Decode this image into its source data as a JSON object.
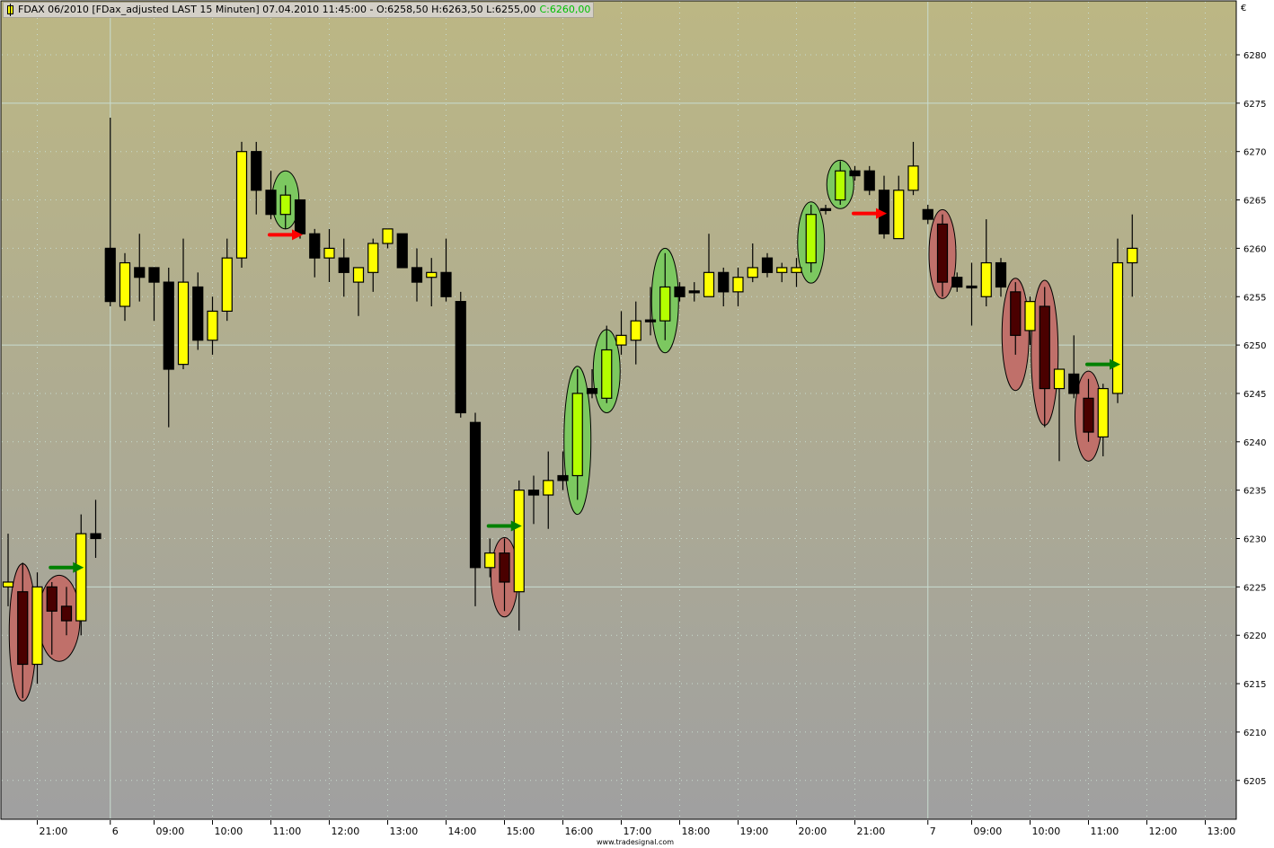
{
  "title": {
    "instrument": "FDAX 06/2010 [FDax_adjusted LAST 15 Minuten] 07.04.2010 11:45:00 - O:6258,50 H:6263,50 L:6255,00",
    "close": "C:6260,00",
    "icon": "candlestick-icon"
  },
  "currency": "€",
  "footer": "www.tradesignal.com",
  "colors": {
    "bg_top": "#bcb784",
    "bg_bottom": "#a0a0a0",
    "up": "#ffff00",
    "down": "#000000",
    "up_in_red": "#ffb000",
    "down_in_red": "#4a0000",
    "up_in_green": "#b4ff00",
    "down_in_green": "#003a00",
    "red_ellipse": "#c0706a",
    "green_ellipse": "#7cc860",
    "red_arrow": "#ff0000",
    "green_arrow": "#008000",
    "grid": "#c8dcd0",
    "close_text": "#00c000"
  },
  "chart_data": {
    "type": "candlestick",
    "ylim": [
      6200,
      6285
    ],
    "y_ticks": [
      6205,
      6210,
      6215,
      6220,
      6225,
      6230,
      6235,
      6240,
      6245,
      6250,
      6255,
      6260,
      6265,
      6270,
      6275,
      6280
    ],
    "grid": true,
    "x_ticks": [
      {
        "label": "21:00",
        "time": "5 21:00",
        "day_break": false
      },
      {
        "label": "6",
        "time": "6 08:15",
        "day_break": true
      },
      {
        "label": "09:00",
        "time": "6 09:00",
        "day_break": false
      },
      {
        "label": "10:00",
        "time": "6 10:00",
        "day_break": false
      },
      {
        "label": "11:00",
        "time": "6 11:00",
        "day_break": false
      },
      {
        "label": "12:00",
        "time": "6 12:00",
        "day_break": false
      },
      {
        "label": "13:00",
        "time": "6 13:00",
        "day_break": false
      },
      {
        "label": "14:00",
        "time": "6 14:00",
        "day_break": false
      },
      {
        "label": "15:00",
        "time": "6 15:00",
        "day_break": false
      },
      {
        "label": "16:00",
        "time": "6 16:00",
        "day_break": false
      },
      {
        "label": "17:00",
        "time": "6 17:00",
        "day_break": false
      },
      {
        "label": "18:00",
        "time": "6 18:00",
        "day_break": false
      },
      {
        "label": "19:00",
        "time": "6 19:00",
        "day_break": false
      },
      {
        "label": "20:00",
        "time": "6 20:00",
        "day_break": false
      },
      {
        "label": "21:00",
        "time": "6 21:00",
        "day_break": false
      },
      {
        "label": "7",
        "time": "7 08:15",
        "day_break": true
      },
      {
        "label": "09:00",
        "time": "7 09:00",
        "day_break": false
      },
      {
        "label": "10:00",
        "time": "7 10:00",
        "day_break": false
      },
      {
        "label": "11:00",
        "time": "7 11:00",
        "day_break": false
      },
      {
        "label": "12:00",
        "time": "7 12:00",
        "day_break": false
      },
      {
        "label": "13:00",
        "time": "7 13:00",
        "day_break": false
      }
    ],
    "candle_fields": [
      "time",
      "open",
      "high",
      "low",
      "close"
    ],
    "candles": [
      [
        "5 20:30",
        6225,
        6230.5,
        6223,
        6225.5
      ],
      [
        "5 20:45",
        6224.5,
        6227.5,
        6213.5,
        6217
      ],
      [
        "5 21:00",
        6217,
        6226.5,
        6215,
        6225
      ],
      [
        "5 21:15",
        6225,
        6225.5,
        6218,
        6222.5
      ],
      [
        "5 21:30",
        6223,
        6225,
        6220,
        6221.5
      ],
      [
        "5 21:45",
        6221.5,
        6232.5,
        6220,
        6230.5
      ],
      [
        "5 22:00",
        6230.5,
        6234,
        6228,
        6230
      ],
      [
        "6 08:15",
        6260,
        6273.5,
        6254,
        6254.5
      ],
      [
        "6 08:30",
        6254,
        6259.5,
        6252.5,
        6258.5
      ],
      [
        "6 08:45",
        6258,
        6261.5,
        6254.5,
        6257
      ],
      [
        "6 09:00",
        6258,
        6258,
        6252.5,
        6256.5
      ],
      [
        "6 09:15",
        6256.5,
        6258,
        6241.5,
        6247.5
      ],
      [
        "6 09:30",
        6248,
        6261,
        6247.5,
        6256.5
      ],
      [
        "6 09:45",
        6256,
        6257.5,
        6249.5,
        6250.5
      ],
      [
        "6 10:00",
        6250.5,
        6255,
        6249,
        6253.5
      ],
      [
        "6 10:15",
        6253.5,
        6261,
        6252.5,
        6259
      ],
      [
        "6 10:30",
        6259,
        6271,
        6258,
        6270
      ],
      [
        "6 10:45",
        6270,
        6271,
        6263.5,
        6266
      ],
      [
        "6 11:00",
        6266,
        6268,
        6263,
        6263.5
      ],
      [
        "6 11:15",
        6263.5,
        6266.5,
        6262,
        6265.5
      ],
      [
        "6 11:30",
        6265,
        6265,
        6261,
        6261.5
      ],
      [
        "6 11:45",
        6261.5,
        6262,
        6257,
        6259
      ],
      [
        "6 12:00",
        6259,
        6262,
        6256.5,
        6260
      ],
      [
        "6 12:15",
        6259,
        6261,
        6255,
        6257.5
      ],
      [
        "6 12:30",
        6256.5,
        6258,
        6253,
        6258
      ],
      [
        "6 12:45",
        6257.5,
        6261,
        6255.5,
        6260.5
      ],
      [
        "6 13:00",
        6260.5,
        6262,
        6260,
        6262
      ],
      [
        "6 13:15",
        6261.5,
        6261.5,
        6258,
        6258
      ],
      [
        "6 13:30",
        6258,
        6260,
        6254.5,
        6256.5
      ],
      [
        "6 13:45",
        6257,
        6259,
        6254,
        6257.5
      ],
      [
        "6 14:00",
        6257.5,
        6261,
        6254.5,
        6255
      ],
      [
        "6 14:15",
        6254.5,
        6255.5,
        6242.5,
        6243
      ],
      [
        "6 14:30",
        6242,
        6243,
        6223,
        6227
      ],
      [
        "6 14:45",
        6227,
        6230,
        6226,
        6228.5
      ],
      [
        "6 15:00",
        6228.5,
        6230,
        6222.5,
        6225.5
      ],
      [
        "6 15:15",
        6224.5,
        6236,
        6220.5,
        6235
      ],
      [
        "6 15:30",
        6235,
        6236.5,
        6231.5,
        6234.5
      ],
      [
        "6 15:45",
        6234.5,
        6239,
        6231,
        6236
      ],
      [
        "6 16:00",
        6236.5,
        6239,
        6235,
        6236
      ],
      [
        "6 16:15",
        6236.5,
        6247.5,
        6234,
        6245
      ],
      [
        "6 16:30",
        6245.5,
        6247.5,
        6244.5,
        6245
      ],
      [
        "6 16:45",
        6244.5,
        6252,
        6244,
        6249.5
      ],
      [
        "6 17:00",
        6250,
        6253.5,
        6249,
        6251
      ],
      [
        "6 17:15",
        6250.5,
        6254.5,
        6248,
        6252.5
      ],
      [
        "6 17:30",
        6252.5,
        6256,
        6251,
        6252.5
      ],
      [
        "6 17:45",
        6252.5,
        6259.5,
        6250.5,
        6256
      ],
      [
        "6 18:00",
        6256,
        6256.5,
        6254.5,
        6255
      ],
      [
        "6 18:15",
        6255.5,
        6256.5,
        6254.5,
        6255.5
      ],
      [
        "6 18:30",
        6255,
        6261.5,
        6255,
        6257.5
      ],
      [
        "6 18:45",
        6257.5,
        6258,
        6254,
        6255.5
      ],
      [
        "6 19:00",
        6255.5,
        6258,
        6254,
        6257
      ],
      [
        "6 19:15",
        6257,
        6260.5,
        6256.5,
        6258
      ],
      [
        "6 19:30",
        6259,
        6259.5,
        6257,
        6257.5
      ],
      [
        "6 19:45",
        6257.5,
        6258.5,
        6256.5,
        6258
      ],
      [
        "6 20:00",
        6257.5,
        6259,
        6256,
        6258
      ],
      [
        "6 20:15",
        6258.5,
        6264.5,
        6257.5,
        6263.5
      ],
      [
        "6 20:30",
        6264,
        6264.5,
        6263.5,
        6264
      ],
      [
        "6 20:45",
        6265,
        6269,
        6264.5,
        6268
      ],
      [
        "6 21:00",
        6268,
        6268.5,
        6267,
        6267.5
      ],
      [
        "6 21:15",
        6268,
        6268.5,
        6265.5,
        6266
      ],
      [
        "6 21:30",
        6266,
        6267.5,
        6261,
        6261.5
      ],
      [
        "6 21:45",
        6261,
        6267.5,
        6261,
        6266
      ],
      [
        "6 22:00",
        6266,
        6271,
        6265.5,
        6268.5
      ],
      [
        "7 08:15",
        6264,
        6264.5,
        6262.5,
        6263
      ],
      [
        "7 08:30",
        6262.5,
        6263.5,
        6255,
        6256.5
      ],
      [
        "7 08:45",
        6257,
        6257.5,
        6255.5,
        6256
      ],
      [
        "7 09:00",
        6256,
        6258.5,
        6252,
        6256
      ],
      [
        "7 09:15",
        6255,
        6263,
        6254,
        6258.5
      ],
      [
        "7 09:30",
        6258.5,
        6259,
        6255,
        6256
      ],
      [
        "7 09:45",
        6255.5,
        6256.5,
        6249,
        6251
      ],
      [
        "7 10:00",
        6251.5,
        6255,
        6250,
        6254.5
      ],
      [
        "7 10:15",
        6254,
        6256,
        6241.5,
        6245.5
      ],
      [
        "7 10:30",
        6245.5,
        6247.5,
        6238,
        6247.5
      ],
      [
        "7 10:45",
        6247,
        6251,
        6244.5,
        6245
      ],
      [
        "7 11:00",
        6244.5,
        6246.5,
        6240,
        6241
      ],
      [
        "7 11:15",
        6240.5,
        6246,
        6238.5,
        6245.5
      ],
      [
        "7 11:30",
        6245,
        6261,
        6244,
        6258.5
      ],
      [
        "7 11:45",
        6258.5,
        6263.5,
        6255,
        6260
      ]
    ],
    "ellipses": [
      {
        "color": "red",
        "start": "5 20:45",
        "end": "5 20:45",
        "high": 6227.4,
        "low": 6213.2
      },
      {
        "color": "red",
        "start": "5 21:15",
        "end": "5 21:30",
        "high": 6226.2,
        "low": 6217.3
      },
      {
        "color": "green",
        "start": "6 11:15",
        "end": "6 11:15",
        "high": 6268,
        "low": 6262
      },
      {
        "color": "red",
        "start": "6 15:00",
        "end": "6 15:00",
        "high": 6230.1,
        "low": 6221.9
      },
      {
        "color": "green",
        "start": "6 16:15",
        "end": "6 16:15",
        "high": 6247.8,
        "low": 6232.5
      },
      {
        "color": "green",
        "start": "6 16:45",
        "end": "6 16:45",
        "high": 6251.6,
        "low": 6243
      },
      {
        "color": "green",
        "start": "6 17:45",
        "end": "6 17:45",
        "high": 6260,
        "low": 6249.2
      },
      {
        "color": "green",
        "start": "6 20:15",
        "end": "6 20:15",
        "high": 6264.8,
        "low": 6256.4
      },
      {
        "color": "green",
        "start": "6 20:45",
        "end": "6 20:45",
        "high": 6269.1,
        "low": 6264.1
      },
      {
        "color": "red",
        "start": "7 08:30",
        "end": "7 08:30",
        "high": 6264,
        "low": 6254.8
      },
      {
        "color": "red",
        "start": "7 09:45",
        "end": "7 09:45",
        "high": 6256.9,
        "low": 6245.3
      },
      {
        "color": "red",
        "start": "7 10:15",
        "end": "7 10:15",
        "high": 6256.7,
        "low": 6241.7
      },
      {
        "color": "red",
        "start": "7 11:00",
        "end": "7 11:00",
        "high": 6247.3,
        "low": 6238
      }
    ],
    "arrows": [
      {
        "color": "green",
        "direction": "right",
        "at": "5 21:45",
        "price": 6227
      },
      {
        "color": "red",
        "direction": "right",
        "at": "6 11:30",
        "price": 6261.4
      },
      {
        "color": "green",
        "direction": "right",
        "at": "6 15:15",
        "price": 6231.3
      },
      {
        "color": "red",
        "direction": "right",
        "at": "6 21:30",
        "price": 6263.6
      },
      {
        "color": "green",
        "direction": "right",
        "at": "7 11:30",
        "price": 6248
      }
    ]
  }
}
